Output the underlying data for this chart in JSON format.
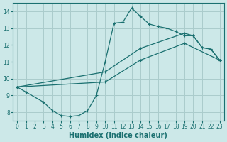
{
  "xlabel": "Humidex (Indice chaleur)",
  "bg_color": "#cce8e8",
  "grid_color": "#aacccc",
  "line_color": "#1a7070",
  "xlim": [
    -0.5,
    23.5
  ],
  "ylim": [
    7.5,
    14.5
  ],
  "xticks": [
    0,
    1,
    2,
    3,
    4,
    5,
    6,
    7,
    8,
    9,
    10,
    11,
    12,
    13,
    14,
    15,
    16,
    17,
    18,
    19,
    20,
    21,
    22,
    23
  ],
  "yticks": [
    8,
    9,
    10,
    11,
    12,
    13,
    14
  ],
  "line1_x": [
    0,
    1,
    3,
    4,
    5,
    6,
    7,
    8,
    9,
    10,
    11,
    12,
    13,
    14,
    15,
    16,
    17,
    18,
    19,
    20,
    21,
    22,
    23
  ],
  "line1_y": [
    9.5,
    9.2,
    8.6,
    8.1,
    7.8,
    7.75,
    7.8,
    8.1,
    9.0,
    11.0,
    13.3,
    13.35,
    14.2,
    13.7,
    13.25,
    13.1,
    13.0,
    12.8,
    12.55,
    12.55,
    11.85,
    11.75,
    11.1
  ],
  "line2_x": [
    0,
    10,
    14,
    19,
    20,
    21,
    22,
    23
  ],
  "line2_y": [
    9.5,
    10.4,
    11.8,
    12.7,
    12.55,
    11.85,
    11.75,
    11.1
  ],
  "line3_x": [
    0,
    10,
    14,
    19,
    23
  ],
  "line3_y": [
    9.5,
    9.8,
    11.1,
    12.1,
    11.1
  ]
}
